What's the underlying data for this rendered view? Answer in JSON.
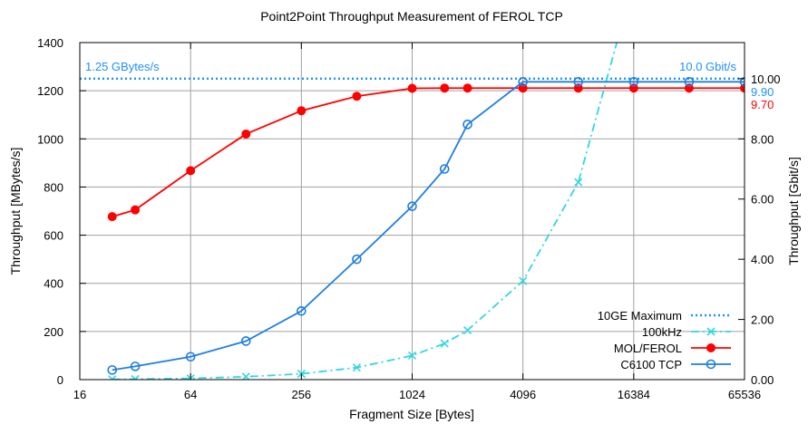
{
  "chart_data": {
    "type": "line",
    "title": "Point2Point Throughput Measurement of FEROL TCP",
    "xlabel": "Fragment Size [Bytes]",
    "ylabel": "Throughput [MBytes/s]",
    "y2label": "Throughput [Gbit/s]",
    "x_scale": "log2",
    "xlim": [
      16,
      65536
    ],
    "ylim": [
      0,
      1400
    ],
    "y2lim": [
      0,
      11.2
    ],
    "grid": true,
    "legend_position": "bottom-right",
    "x_ticks": [
      {
        "value": 16,
        "label": "16"
      },
      {
        "value": 64,
        "label": "64"
      },
      {
        "value": 256,
        "label": "256"
      },
      {
        "value": 1024,
        "label": "1024"
      },
      {
        "value": 4096,
        "label": "4096"
      },
      {
        "value": 16384,
        "label": "16384"
      },
      {
        "value": 65536,
        "label": "65536"
      }
    ],
    "y_ticks": [
      {
        "value": 0,
        "label": "0"
      },
      {
        "value": 200,
        "label": "200"
      },
      {
        "value": 400,
        "label": "400"
      },
      {
        "value": 600,
        "label": "600"
      },
      {
        "value": 800,
        "label": "800"
      },
      {
        "value": 1000,
        "label": "1000"
      },
      {
        "value": 1200,
        "label": "1200"
      },
      {
        "value": 1400,
        "label": "1400"
      }
    ],
    "y2_ticks": [
      {
        "value": 0,
        "label": "0.00"
      },
      {
        "value": 2,
        "label": "2.00"
      },
      {
        "value": 4,
        "label": "4.00"
      },
      {
        "value": 6,
        "label": "6.00"
      },
      {
        "value": 8,
        "label": "8.00"
      },
      {
        "value": 10,
        "label": "10.00"
      }
    ],
    "series": [
      {
        "name": "10GE Maximum",
        "color": "#1e90ff",
        "style": "dotted",
        "marker": "none",
        "x": [
          16,
          65536
        ],
        "y": [
          1250,
          1250
        ]
      },
      {
        "name": "100kHz",
        "color": "#33d6e0",
        "style": "dashdot",
        "marker": "x",
        "x": [
          24,
          32,
          64,
          128,
          256,
          512,
          1024,
          1536,
          2048,
          4096,
          8192,
          17000
        ],
        "y": [
          1,
          2,
          5,
          12,
          24,
          50,
          100,
          150,
          205,
          410,
          820,
          1700
        ]
      },
      {
        "name": "MOL/FEROL",
        "color": "#ff0000",
        "style": "solid",
        "marker": "filled-circle",
        "x": [
          24,
          32,
          64,
          128,
          256,
          512,
          1024,
          1536,
          2048,
          4096,
          8192,
          16384,
          32768,
          65536
        ],
        "y": [
          677,
          705,
          868,
          1020,
          1117,
          1177,
          1210,
          1211,
          1211,
          1211,
          1211,
          1211,
          1211,
          1211
        ]
      },
      {
        "name": "C6100 TCP",
        "color": "#1e7fe0",
        "style": "solid",
        "marker": "open-circle",
        "x": [
          24,
          32,
          64,
          128,
          256,
          512,
          1024,
          1536,
          2048,
          4096,
          8192,
          16384,
          32768,
          65536
        ],
        "y": [
          40,
          55,
          95,
          160,
          285,
          500,
          720,
          875,
          1060,
          1237,
          1237,
          1237,
          1237,
          1237
        ]
      }
    ],
    "annotations": [
      {
        "text": "1.25 GBytes/s",
        "color": "#1e90ff",
        "position": "top-left"
      },
      {
        "text": "10.0 Gbit/s",
        "color": "#1e90ff",
        "position": "top-right"
      },
      {
        "text": "9.90",
        "color": "#1e90ff",
        "position": "right-axis"
      },
      {
        "text": "9.70",
        "color": "#ff0000",
        "position": "right-axis"
      }
    ]
  }
}
